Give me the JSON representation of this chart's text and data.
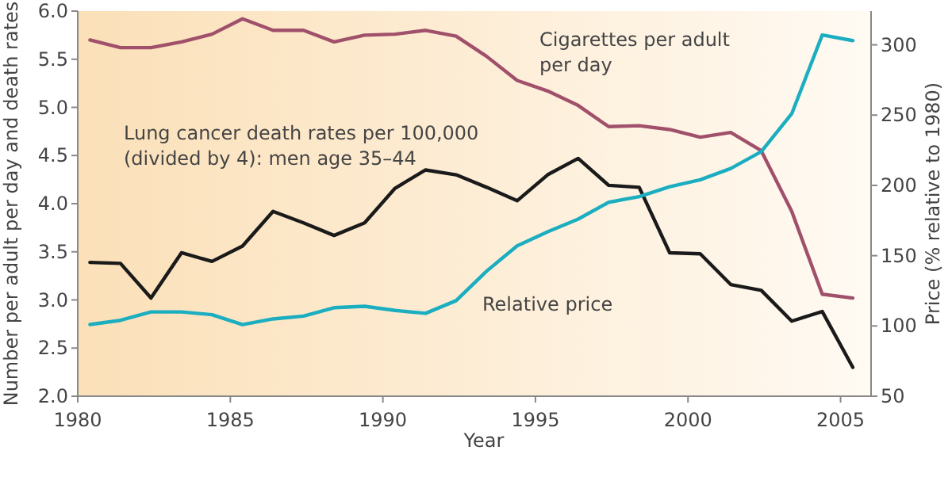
{
  "chart_data": {
    "type": "line",
    "xlabel": "Year",
    "ylabel": "Number per adult per day and death rates",
    "y2label": "Price (% relative to 1980)",
    "x": [
      1980.4,
      1981.4,
      1982.4,
      1983.4,
      1984.4,
      1985.4,
      1986.4,
      1987.4,
      1988.4,
      1989.4,
      1990.4,
      1991.4,
      1992.4,
      1993.4,
      1994.4,
      1995.4,
      1996.4,
      1997.4,
      1998.4,
      1999.4,
      2000.4,
      2001.4,
      2002.4,
      2003.4,
      2004.4,
      2005.4
    ],
    "series": [
      {
        "name": "Cigarettes per adult per day",
        "color": "#a0506a",
        "values": [
          5.7,
          5.62,
          5.62,
          5.68,
          5.76,
          5.92,
          5.8,
          5.8,
          5.68,
          5.75,
          5.76,
          5.8,
          5.74,
          5.53,
          5.28,
          5.17,
          5.02,
          4.8,
          4.81,
          4.77,
          4.69,
          4.74,
          4.55,
          3.92,
          3.06,
          3.02
        ]
      },
      {
        "name": "Lung cancer death rates per 100,000 (divided by 4): men age 35–44",
        "color": "#1a1a1a",
        "values": [
          3.39,
          3.38,
          3.02,
          3.49,
          3.4,
          3.56,
          3.92,
          3.8,
          3.67,
          3.8,
          4.16,
          4.35,
          4.3,
          4.17,
          4.03,
          4.3,
          4.47,
          4.19,
          4.17,
          3.49,
          3.48,
          3.16,
          3.1,
          2.78,
          2.88,
          2.3
        ]
      },
      {
        "name": "Relative price",
        "color": "#1aaec0",
        "axis": "y2",
        "values": [
          101,
          104,
          110,
          110,
          108,
          101,
          105,
          107,
          113,
          114,
          111,
          109,
          118,
          139,
          157,
          167,
          176,
          188,
          192,
          199,
          204,
          212,
          224,
          251,
          307,
          303
        ]
      }
    ],
    "xlim": [
      1980,
      2006
    ],
    "xticks": [
      1980,
      1985,
      1990,
      1995,
      2000,
      2005
    ],
    "ylim": [
      2,
      6
    ],
    "yticks": [
      {
        "value": 2,
        "label": "2.0"
      },
      {
        "value": 2.5,
        "label": "2.5"
      },
      {
        "value": 3,
        "label": "3.0"
      },
      {
        "value": 3.5,
        "label": "3.5"
      },
      {
        "value": 4,
        "label": "4.0"
      },
      {
        "value": 4.5,
        "label": "4.5"
      },
      {
        "value": 5,
        "label": "5.0"
      },
      {
        "value": 5.5,
        "label": "5.5"
      },
      {
        "value": 6,
        "label": "6.0"
      }
    ],
    "y2lim": [
      50,
      324
    ],
    "y2ticks": [
      50,
      100,
      150,
      200,
      250,
      300
    ],
    "grid": false,
    "marker": "none",
    "line_style": "solid"
  }
}
